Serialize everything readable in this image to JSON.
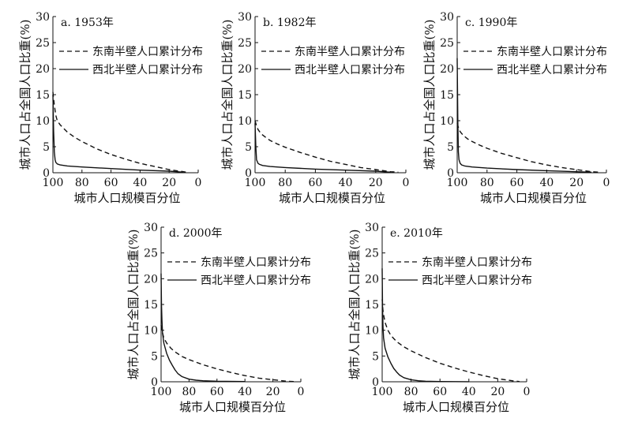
{
  "chart_data": [
    {
      "type": "line",
      "title": "a. 1953年",
      "xlabel": "城市人口规模百分位",
      "ylabel": "城市人口占全国人口比重(%)",
      "xlim": [
        100,
        0
      ],
      "ylim": [
        0,
        30
      ],
      "xticks": [
        "100",
        "80",
        "60",
        "40",
        "20",
        "0"
      ],
      "yticks": [
        "0",
        "5",
        "10",
        "15",
        "20",
        "25",
        "30"
      ],
      "grid": false,
      "legend": "top-right",
      "series": [
        {
          "name": "东南半壁人口累计分布",
          "dash": "dashed",
          "x": [
            100,
            99,
            98,
            97,
            95,
            90,
            85,
            80,
            70,
            60,
            50,
            40,
            30,
            20,
            15,
            10,
            8
          ],
          "y": [
            15.5,
            13,
            11,
            10,
            9.2,
            7.8,
            6.8,
            6.0,
            4.6,
            3.5,
            2.6,
            1.8,
            1.2,
            0.6,
            0.4,
            0.2,
            0.1
          ]
        },
        {
          "name": "西北半壁人口累计分布",
          "dash": "solid",
          "x": [
            100,
            99.5,
            99,
            98.5,
            98,
            97,
            95,
            90,
            80,
            60,
            40,
            20,
            10
          ],
          "y": [
            15,
            8,
            4,
            2.5,
            2,
            1.7,
            1.5,
            1.3,
            1.1,
            0.8,
            0.5,
            0.3,
            0.1
          ]
        }
      ]
    },
    {
      "type": "line",
      "title": "b. 1982年",
      "xlabel": "城市人口规模百分位",
      "ylabel": "城市人口占全国人口比重(%)",
      "xlim": [
        100,
        0
      ],
      "ylim": [
        0,
        30
      ],
      "xticks": [
        "100",
        "80",
        "60",
        "40",
        "20",
        "0"
      ],
      "yticks": [
        "0",
        "5",
        "10",
        "15",
        "20",
        "25",
        "30"
      ],
      "grid": false,
      "legend": "top-right",
      "series": [
        {
          "name": "东南半壁人口累计分布",
          "dash": "dashed",
          "x": [
            100,
            99,
            98,
            96,
            93,
            90,
            85,
            80,
            70,
            60,
            50,
            40,
            30,
            20,
            10,
            5
          ],
          "y": [
            10,
            9,
            8.3,
            7.5,
            6.8,
            6.2,
            5.5,
            4.9,
            3.9,
            3.0,
            2.2,
            1.6,
            1.0,
            0.6,
            0.2,
            0.1
          ]
        },
        {
          "name": "西北半壁人口累计分布",
          "dash": "solid",
          "x": [
            100,
            99.5,
            99,
            98,
            97,
            95,
            90,
            80,
            60,
            40,
            20,
            10
          ],
          "y": [
            9.5,
            5,
            2.5,
            1.8,
            1.6,
            1.4,
            1.2,
            1.0,
            0.7,
            0.5,
            0.3,
            0.1
          ]
        }
      ]
    },
    {
      "type": "line",
      "title": "c. 1990年",
      "xlabel": "城市人口规模百分位",
      "ylabel": "城市人口占全国人口比重(%)",
      "xlim": [
        100,
        0
      ],
      "ylim": [
        0,
        30
      ],
      "xticks": [
        "100",
        "80",
        "60",
        "40",
        "20",
        "0"
      ],
      "yticks": [
        "0",
        "5",
        "10",
        "15",
        "20",
        "25",
        "30"
      ],
      "grid": false,
      "legend": "top-right",
      "series": [
        {
          "name": "东南半壁人口累计分布",
          "dash": "dashed",
          "x": [
            100,
            99,
            98,
            96,
            93,
            90,
            85,
            80,
            70,
            60,
            50,
            40,
            30,
            20,
            10,
            5
          ],
          "y": [
            9.5,
            8.5,
            7.9,
            7.2,
            6.5,
            6.0,
            5.3,
            4.7,
            3.7,
            2.9,
            2.1,
            1.5,
            1.0,
            0.6,
            0.2,
            0.1
          ]
        },
        {
          "name": "西北半壁人口累计分布",
          "dash": "solid",
          "x": [
            100,
            99.6,
            99.2,
            98.8,
            98,
            97,
            95,
            90,
            80,
            60,
            40,
            20,
            10
          ],
          "y": [
            22,
            10,
            4,
            2.5,
            1.8,
            1.5,
            1.3,
            1.1,
            0.9,
            0.6,
            0.4,
            0.2,
            0.1
          ]
        }
      ]
    },
    {
      "type": "line",
      "title": "d. 2000年",
      "xlabel": "城市人口规模百分位",
      "ylabel": "城市人口占全国人口比重(%)",
      "xlim": [
        100,
        0
      ],
      "ylim": [
        0,
        30
      ],
      "xticks": [
        "100",
        "80",
        "60",
        "40",
        "20",
        "0"
      ],
      "yticks": [
        "0",
        "5",
        "10",
        "15",
        "20",
        "25",
        "30"
      ],
      "grid": false,
      "legend": "top-right",
      "series": [
        {
          "name": "东南半壁人口累计分布",
          "dash": "dashed",
          "x": [
            100,
            99,
            98,
            96,
            93,
            90,
            85,
            80,
            70,
            60,
            50,
            40,
            30,
            20,
            10,
            5
          ],
          "y": [
            11,
            9.5,
            8.5,
            7.5,
            6.5,
            5.8,
            4.9,
            4.3,
            3.3,
            2.5,
            1.8,
            1.2,
            0.7,
            0.4,
            0.1,
            0.05
          ]
        },
        {
          "name": "西北半壁人口累计分布",
          "dash": "solid",
          "x": [
            100,
            99.7,
            99.4,
            99,
            98,
            96,
            94,
            92,
            90,
            88,
            85,
            80,
            75,
            70,
            60,
            40
          ],
          "y": [
            21,
            15,
            12,
            9.5,
            7.5,
            5.5,
            4.2,
            3.2,
            2.3,
            1.6,
            1.0,
            0.5,
            0.3,
            0.2,
            0.1,
            0.05
          ]
        }
      ]
    },
    {
      "type": "line",
      "title": "e. 2010年",
      "xlabel": "城市人口规模百分位",
      "ylabel": "城市人口占全国人口比重(%)",
      "xlim": [
        100,
        0
      ],
      "ylim": [
        0,
        30
      ],
      "xticks": [
        "100",
        "80",
        "60",
        "40",
        "20",
        "0"
      ],
      "yticks": [
        "0",
        "5",
        "10",
        "15",
        "20",
        "25",
        "30"
      ],
      "grid": false,
      "legend": "top-right",
      "series": [
        {
          "name": "东南半壁人口累计分布",
          "dash": "dashed",
          "x": [
            100,
            99.5,
            99,
            98,
            96,
            94,
            92,
            90,
            85,
            80,
            70,
            60,
            50,
            40,
            30,
            20,
            10,
            5
          ],
          "y": [
            16,
            14,
            13,
            11.5,
            10,
            9,
            8.4,
            7.8,
            6.8,
            6.0,
            4.7,
            3.6,
            2.7,
            1.9,
            1.2,
            0.6,
            0.2,
            0.05
          ]
        },
        {
          "name": "西北半壁人口累计分布",
          "dash": "solid",
          "x": [
            100,
            99.7,
            99.4,
            99,
            98,
            96,
            94,
            92,
            90,
            88,
            85,
            80,
            75,
            70,
            60,
            40
          ],
          "y": [
            22,
            14,
            10.5,
            8.5,
            6.5,
            4.8,
            3.6,
            2.6,
            1.9,
            1.3,
            0.8,
            0.4,
            0.2,
            0.1,
            0.05,
            0.02
          ]
        }
      ]
    }
  ]
}
